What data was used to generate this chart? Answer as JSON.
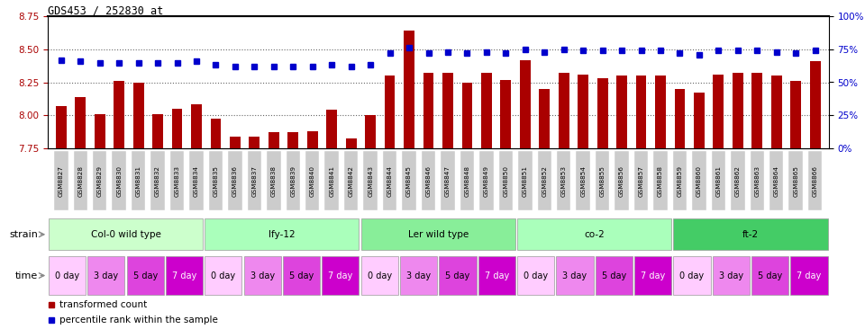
{
  "title": "GDS453 / 252830_at",
  "samples": [
    "GSM8827",
    "GSM8828",
    "GSM8829",
    "GSM8830",
    "GSM8831",
    "GSM8832",
    "GSM8833",
    "GSM8834",
    "GSM8835",
    "GSM8836",
    "GSM8837",
    "GSM8838",
    "GSM8839",
    "GSM8840",
    "GSM8841",
    "GSM8842",
    "GSM8843",
    "GSM8844",
    "GSM8845",
    "GSM8846",
    "GSM8847",
    "GSM8848",
    "GSM8849",
    "GSM8850",
    "GSM8851",
    "GSM8852",
    "GSM8853",
    "GSM8854",
    "GSM8855",
    "GSM8856",
    "GSM8857",
    "GSM8858",
    "GSM8859",
    "GSM8860",
    "GSM8861",
    "GSM8862",
    "GSM8863",
    "GSM8864",
    "GSM8865",
    "GSM8866"
  ],
  "bar_values": [
    8.07,
    8.14,
    8.01,
    8.26,
    8.25,
    8.01,
    8.05,
    8.08,
    7.97,
    7.84,
    7.84,
    7.87,
    7.87,
    7.88,
    8.04,
    7.82,
    8.0,
    8.3,
    8.64,
    8.32,
    8.32,
    8.25,
    8.32,
    8.27,
    8.42,
    8.2,
    8.32,
    8.31,
    8.28,
    8.3,
    8.3,
    8.3,
    8.2,
    8.17,
    8.31,
    8.32,
    8.32,
    8.3,
    8.26,
    8.41
  ],
  "percentile_values": [
    67,
    66,
    65,
    65,
    65,
    65,
    65,
    66,
    63,
    62,
    62,
    62,
    62,
    62,
    63,
    62,
    63,
    72,
    76,
    72,
    73,
    72,
    73,
    72,
    75,
    73,
    75,
    74,
    74,
    74,
    74,
    74,
    72,
    71,
    74,
    74,
    74,
    73,
    72,
    74
  ],
  "ylim_left": [
    7.75,
    8.75
  ],
  "ylim_right": [
    0,
    100
  ],
  "yticks_left": [
    7.75,
    8.0,
    8.25,
    8.5,
    8.75
  ],
  "yticks_right": [
    0,
    25,
    50,
    75,
    100
  ],
  "ytick_labels_right": [
    "0%",
    "25%",
    "50%",
    "75%",
    "100%"
  ],
  "bar_color": "#AA0000",
  "percentile_color": "#0000CC",
  "dotted_line_color": "#666666",
  "dotted_line_values": [
    8.0,
    8.25,
    8.5
  ],
  "strains": [
    {
      "label": "Col-0 wild type",
      "start": 0,
      "end": 8,
      "color": "#ccffcc"
    },
    {
      "label": "lfy-12",
      "start": 8,
      "end": 16,
      "color": "#aaffbb"
    },
    {
      "label": "Ler wild type",
      "start": 16,
      "end": 24,
      "color": "#88ee99"
    },
    {
      "label": "co-2",
      "start": 24,
      "end": 32,
      "color": "#aaffbb"
    },
    {
      "label": "ft-2",
      "start": 32,
      "end": 40,
      "color": "#44cc66"
    }
  ],
  "time_labels": [
    "0 day",
    "3 day",
    "5 day",
    "7 day"
  ],
  "time_colors_bg": [
    "#ffccff",
    "#ee88ee",
    "#dd44dd",
    "#cc00cc"
  ],
  "time_text_colors": [
    "black",
    "black",
    "black",
    "white"
  ],
  "legend_items": [
    {
      "label": "transformed count",
      "color": "#AA0000"
    },
    {
      "label": "percentile rank within the sample",
      "color": "#0000CC"
    }
  ],
  "background_color": "#ffffff",
  "xtick_bg_color": "#cccccc",
  "xtick_fg_color": "#000000"
}
